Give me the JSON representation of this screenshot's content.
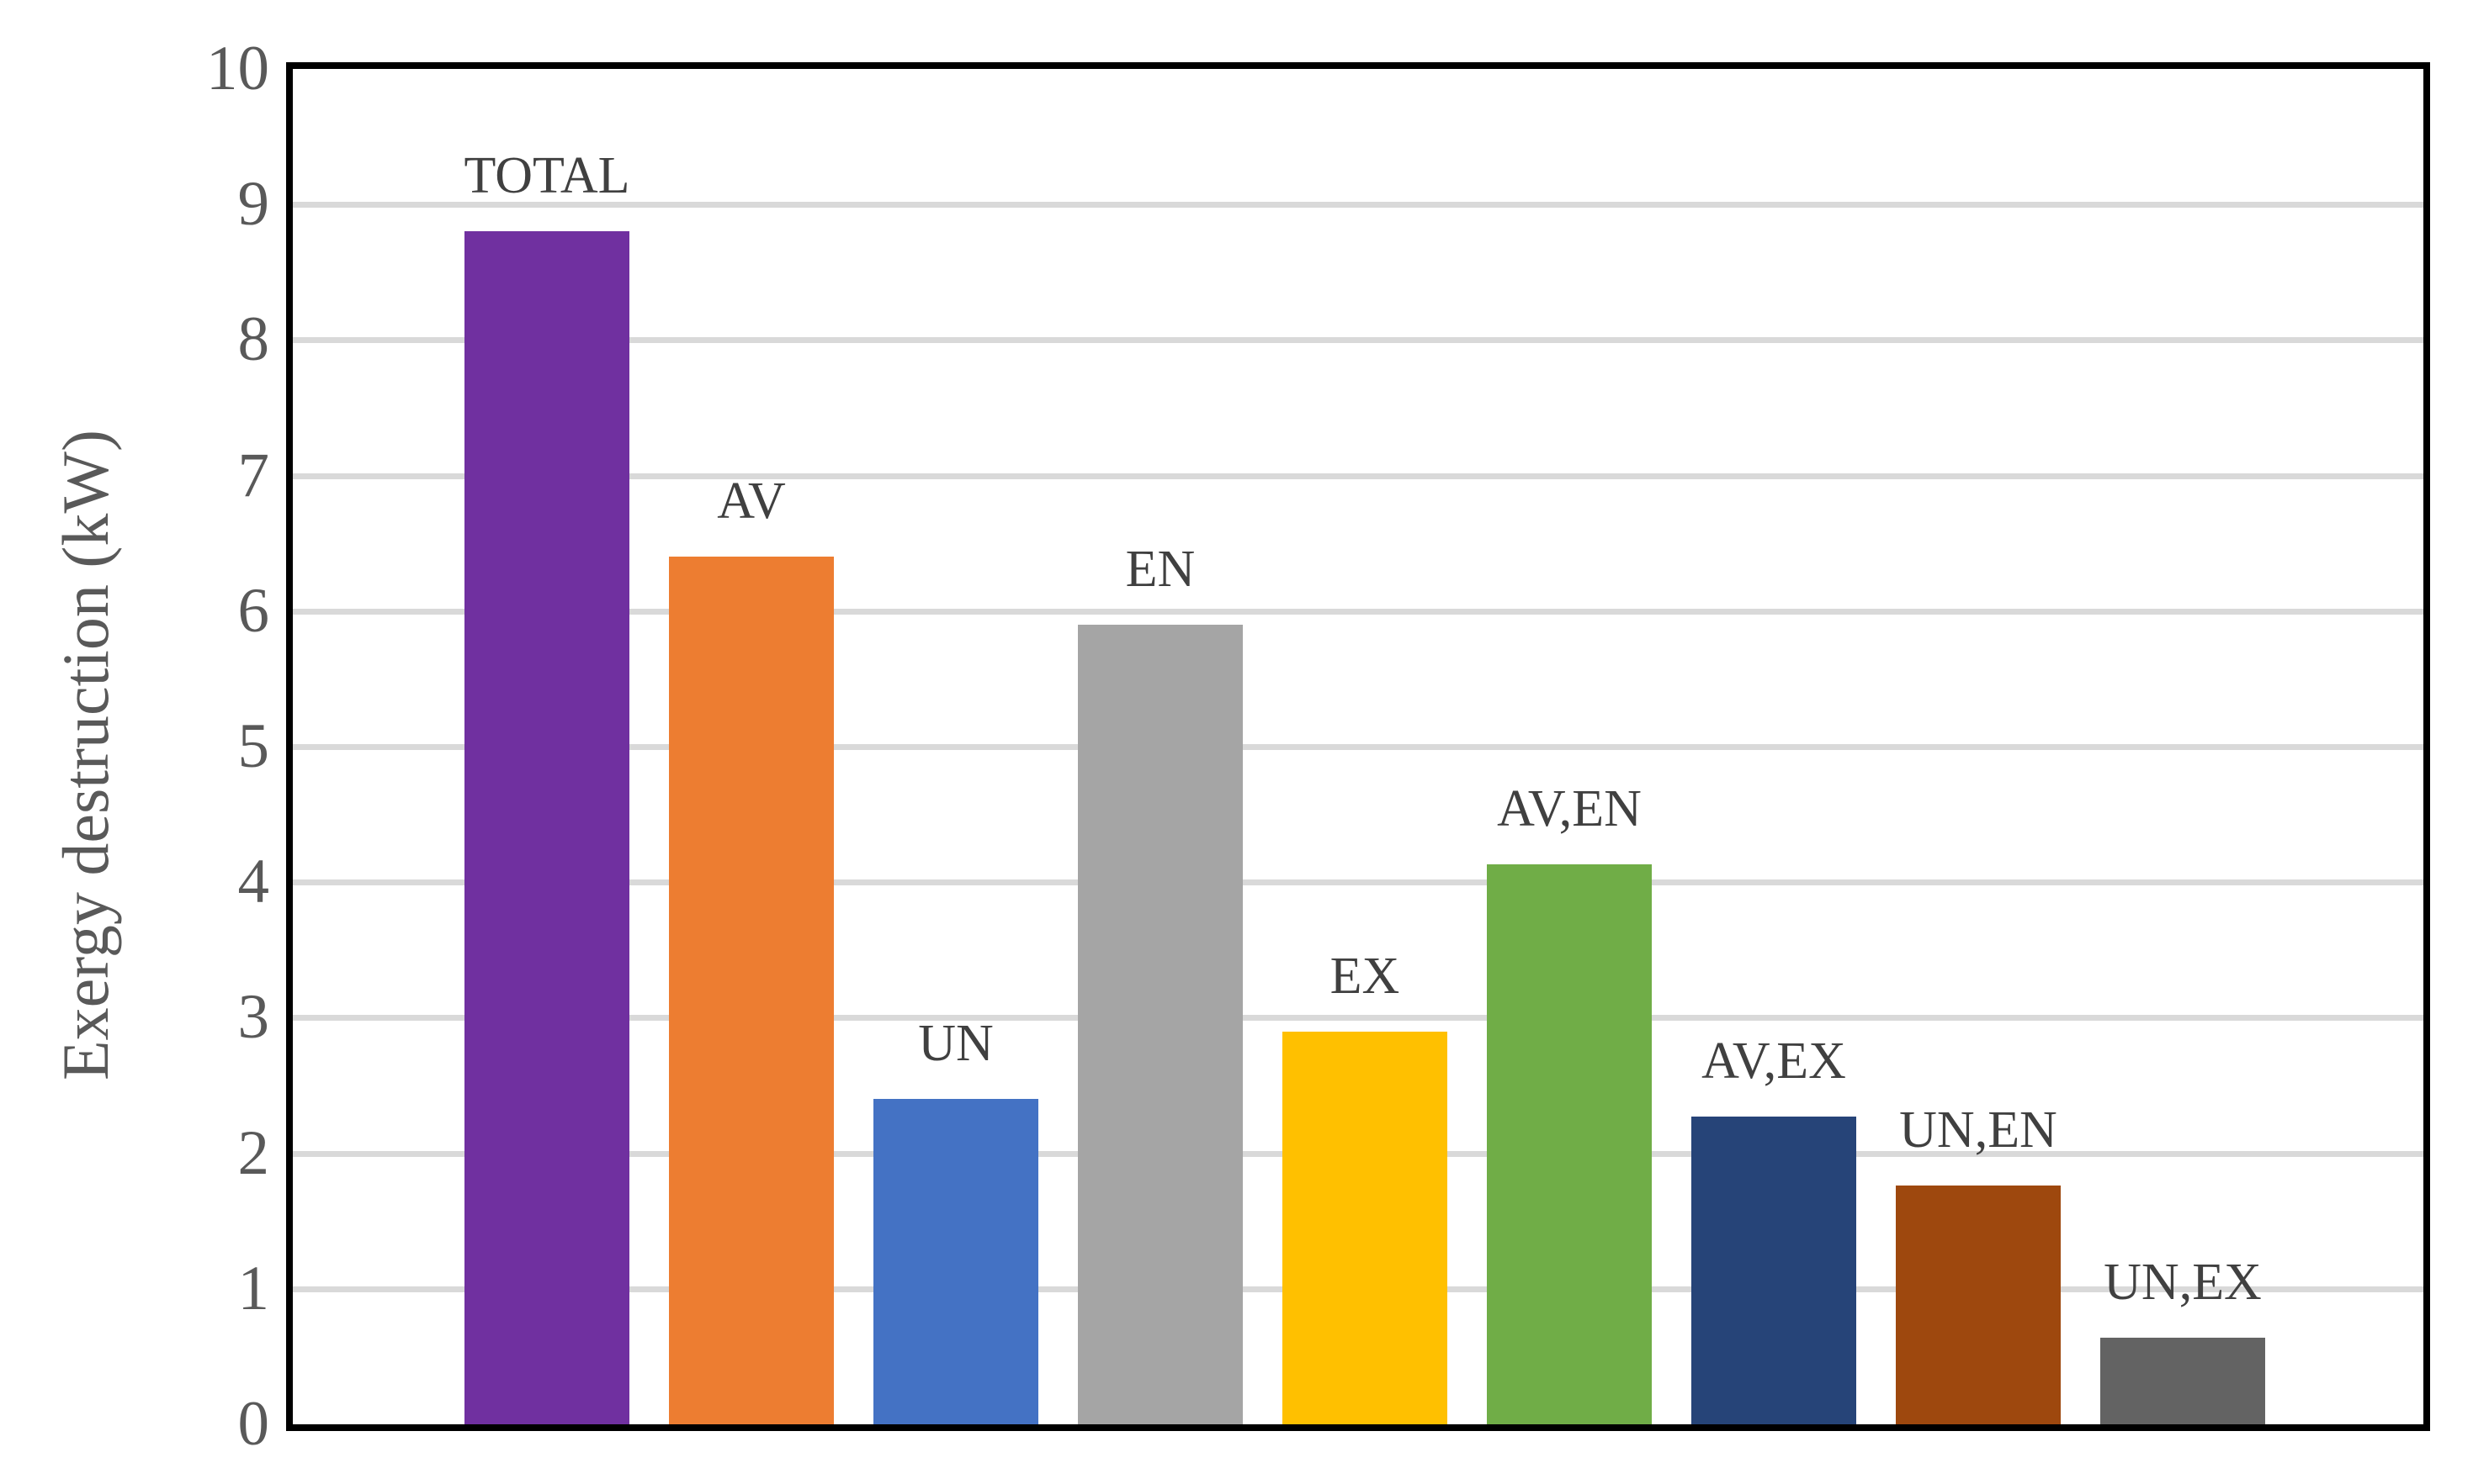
{
  "chart_data": {
    "type": "bar",
    "title": "",
    "xlabel": "",
    "ylabel": "Exergy destruction (kW)",
    "ylim": [
      0,
      10
    ],
    "yticks": [
      0,
      1,
      2,
      3,
      4,
      5,
      6,
      7,
      8,
      9,
      10
    ],
    "grid": "horizontal-major",
    "gridline_color": "#D9D9D9",
    "axis_frame_color": "#000000",
    "tick_label_color": "#595959",
    "bar_label_color": "#404040",
    "legend": "none",
    "bar_labels_position": "above-bars",
    "categories": [
      "TOTAL",
      "AV",
      "UN",
      "EN",
      "EX",
      "AV,EN",
      "AV,EX",
      "UN,EN",
      "UN,EX"
    ],
    "values": [
      8.8,
      6.4,
      2.4,
      5.9,
      2.9,
      4.13,
      2.27,
      1.76,
      0.64
    ],
    "bar_colors": [
      "#7030A0",
      "#ED7D31",
      "#4472C4",
      "#A5A5A5",
      "#FFC000",
      "#70AD47",
      "#264478",
      "#9E480E",
      "#636363"
    ]
  }
}
